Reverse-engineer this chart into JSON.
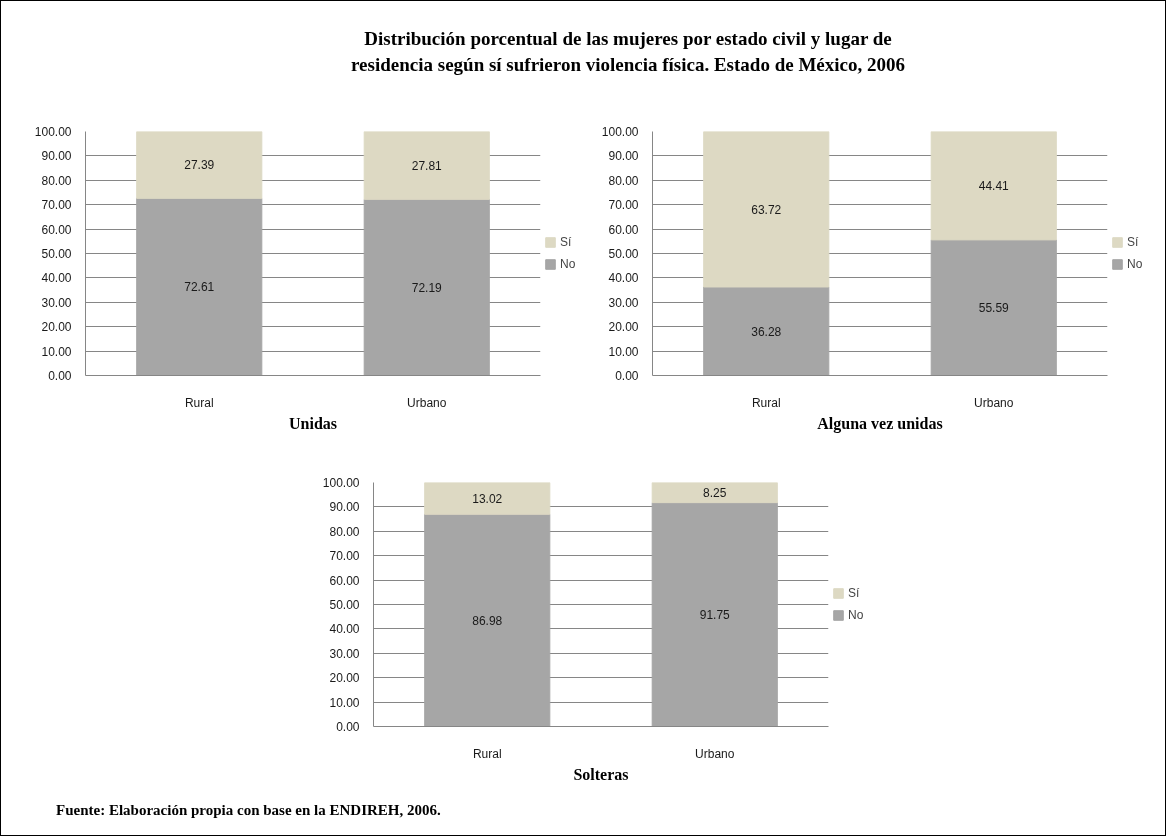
{
  "chart_data": [
    {
      "type": "other",
      "title": "Distribución porcentual de las mujeres por estado civil y lugar de residencia según sí sufrieron violencia física. Estado de México, 2006"
    },
    {
      "type": "bar",
      "xlabel": "Unidas",
      "categories": [
        "Rural",
        "Urbano"
      ],
      "stacked": true,
      "series": [
        {
          "name": "No",
          "color": "#a6a6a6",
          "values": [
            72.61,
            72.19
          ]
        },
        {
          "name": "Sí",
          "color": "#ddd9c3",
          "values": [
            27.39,
            27.81
          ]
        }
      ],
      "ylim": [
        0,
        100
      ],
      "yticks": [
        {
          "value": 0,
          "label": "0.00"
        },
        {
          "value": 10,
          "label": "10.00"
        },
        {
          "value": 20,
          "label": "20.00"
        },
        {
          "value": 30,
          "label": "30.00"
        },
        {
          "value": 40,
          "label": "40.00"
        },
        {
          "value": 50,
          "label": "50.00"
        },
        {
          "value": 60,
          "label": "60.00"
        },
        {
          "value": 70,
          "label": "70.00"
        },
        {
          "value": 80,
          "label": "80.00"
        },
        {
          "value": 90,
          "label": "90.00"
        },
        {
          "value": 100,
          "label": "100.00"
        }
      ],
      "grid": "y",
      "legend": "right",
      "data_labels": true
    },
    {
      "type": "bar",
      "xlabel": "Alguna vez unidas",
      "categories": [
        "Rural",
        "Urbano"
      ],
      "stacked": true,
      "series": [
        {
          "name": "No",
          "color": "#a6a6a6",
          "values": [
            36.28,
            55.59
          ]
        },
        {
          "name": "Sí",
          "color": "#ddd9c3",
          "values": [
            63.72,
            44.41
          ]
        }
      ],
      "ylim": [
        0,
        100
      ],
      "yticks": [
        {
          "value": 0,
          "label": "0.00"
        },
        {
          "value": 10,
          "label": "10.00"
        },
        {
          "value": 20,
          "label": "20.00"
        },
        {
          "value": 30,
          "label": "30.00"
        },
        {
          "value": 40,
          "label": "40.00"
        },
        {
          "value": 50,
          "label": "50.00"
        },
        {
          "value": 60,
          "label": "60.00"
        },
        {
          "value": 70,
          "label": "70.00"
        },
        {
          "value": 80,
          "label": "80.00"
        },
        {
          "value": 90,
          "label": "90.00"
        },
        {
          "value": 100,
          "label": "100.00"
        }
      ],
      "grid": "y",
      "legend": "right",
      "data_labels": true
    },
    {
      "type": "bar",
      "xlabel": "Solteras",
      "categories": [
        "Rural",
        "Urbano"
      ],
      "stacked": true,
      "series": [
        {
          "name": "No",
          "color": "#a6a6a6",
          "values": [
            86.98,
            91.75
          ]
        },
        {
          "name": "Sí",
          "color": "#ddd9c3",
          "values": [
            13.02,
            8.25
          ]
        }
      ],
      "ylim": [
        0,
        100
      ],
      "yticks": [
        {
          "value": 0,
          "label": "0.00"
        },
        {
          "value": 10,
          "label": "10.00"
        },
        {
          "value": 20,
          "label": "20.00"
        },
        {
          "value": 30,
          "label": "30.00"
        },
        {
          "value": 40,
          "label": "40.00"
        },
        {
          "value": 50,
          "label": "50.00"
        },
        {
          "value": 60,
          "label": "60.00"
        },
        {
          "value": 70,
          "label": "70.00"
        },
        {
          "value": 80,
          "label": "80.00"
        },
        {
          "value": 90,
          "label": "90.00"
        },
        {
          "value": 100,
          "label": "100.00"
        }
      ],
      "grid": "y",
      "legend": "right",
      "data_labels": true,
      "annotations": [
        "Fuente: Elaboración propia con base en la ENDIREH, 2006."
      ]
    }
  ]
}
